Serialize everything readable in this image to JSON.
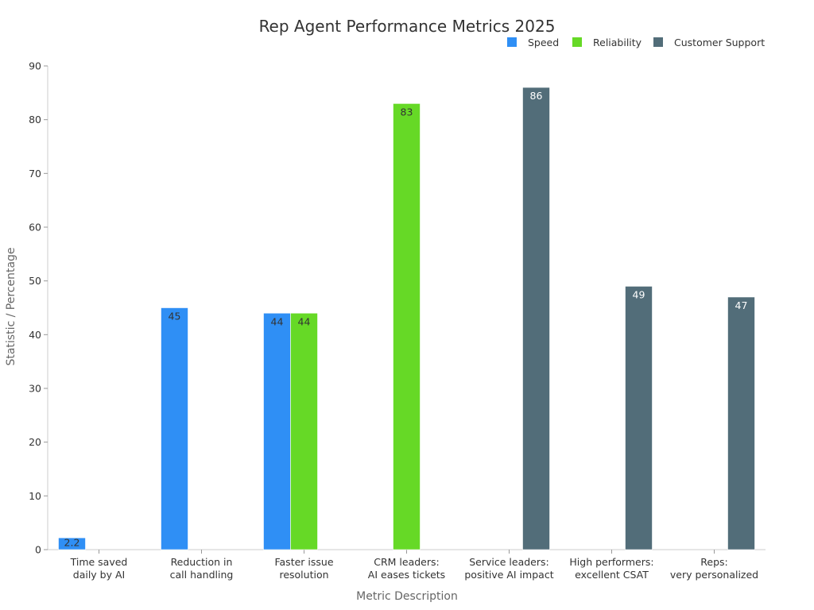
{
  "chart_data": {
    "type": "bar",
    "title": "Rep Agent Performance Metrics 2025",
    "xlabel": "Metric Description",
    "ylabel": "Statistic / Percentage",
    "ylim": [
      0,
      90
    ],
    "yticks": [
      0,
      10,
      20,
      30,
      40,
      50,
      60,
      70,
      80,
      90
    ],
    "legend_position": "top-right",
    "categories": [
      [
        "Time saved",
        "daily by AI"
      ],
      [
        "Reduction in",
        "call handling"
      ],
      [
        "Faster issue",
        "resolution"
      ],
      [
        "CRM leaders:",
        "AI eases tickets"
      ],
      [
        "Service leaders:",
        "positive AI impact"
      ],
      [
        "High performers:",
        "excellent CSAT"
      ],
      [
        "Reps:",
        "very personalized"
      ]
    ],
    "series": [
      {
        "name": "Speed",
        "color": "#2f8ff5",
        "label_color": "#333333",
        "values": [
          2.2,
          45,
          44,
          null,
          null,
          null,
          null
        ]
      },
      {
        "name": "Reliability",
        "color": "#66d926",
        "label_color": "#333333",
        "values": [
          null,
          null,
          44,
          83,
          null,
          null,
          null
        ]
      },
      {
        "name": "Customer Support",
        "color": "#526d79",
        "label_color": "#ffffff",
        "values": [
          null,
          null,
          null,
          null,
          86,
          49,
          47
        ]
      }
    ]
  }
}
